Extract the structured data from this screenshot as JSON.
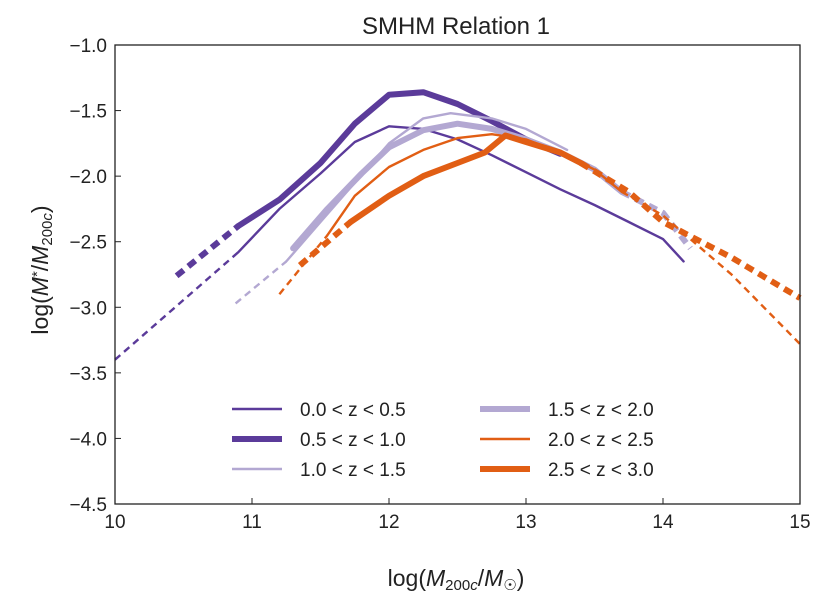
{
  "chart_data": {
    "type": "line",
    "title": "SMHM Relation 1",
    "xlabel": "log(M200c/M☉)",
    "ylabel": "log(M*/M200c)",
    "xlim": [
      10,
      15
    ],
    "ylim": [
      -4.5,
      -1.0
    ],
    "xticks": [
      "10",
      "11",
      "12",
      "13",
      "14",
      "15"
    ],
    "yticks": [
      "−1.0",
      "−1.5",
      "−2.0",
      "−2.5",
      "−3.0",
      "−3.5",
      "−4.0",
      "−4.5"
    ],
    "legend_position": "lower-center",
    "series": [
      {
        "name": "0.0 < z < 0.5",
        "color": "#5b3b9a",
        "weight": "thin",
        "points": [
          [
            10.9,
            -2.58
          ],
          [
            11.2,
            -2.25
          ],
          [
            11.5,
            -1.98
          ],
          [
            11.75,
            -1.74
          ],
          [
            12.0,
            -1.62
          ],
          [
            12.25,
            -1.64
          ],
          [
            12.5,
            -1.72
          ],
          [
            12.75,
            -1.84
          ],
          [
            13.0,
            -1.97
          ],
          [
            13.25,
            -2.1
          ],
          [
            13.5,
            -2.22
          ],
          [
            13.75,
            -2.35
          ],
          [
            14.0,
            -2.48
          ],
          [
            14.15,
            -2.65
          ]
        ],
        "extrapolated": [
          [
            10.0,
            -3.4
          ],
          [
            10.9,
            -2.58
          ]
        ]
      },
      {
        "name": "0.5 < z < 1.0",
        "color": "#5b3b9a",
        "weight": "thick",
        "points": [
          [
            10.9,
            -2.38
          ],
          [
            11.2,
            -2.18
          ],
          [
            11.5,
            -1.9
          ],
          [
            11.75,
            -1.6
          ],
          [
            12.0,
            -1.38
          ],
          [
            12.25,
            -1.36
          ],
          [
            12.5,
            -1.45
          ],
          [
            12.75,
            -1.58
          ],
          [
            13.0,
            -1.72
          ],
          [
            13.25,
            -1.83
          ]
        ],
        "extrapolated": [
          [
            10.45,
            -2.76
          ],
          [
            10.9,
            -2.38
          ]
        ]
      },
      {
        "name": "1.0 < z < 1.5",
        "color": "#b3a8d2",
        "weight": "thin",
        "points": [
          [
            11.25,
            -2.65
          ],
          [
            11.5,
            -2.35
          ],
          [
            11.75,
            -2.05
          ],
          [
            12.0,
            -1.75
          ],
          [
            12.25,
            -1.56
          ],
          [
            12.45,
            -1.52
          ],
          [
            12.75,
            -1.56
          ],
          [
            13.0,
            -1.64
          ],
          [
            13.3,
            -1.8
          ]
        ],
        "extrapolated": [
          [
            10.88,
            -2.97
          ],
          [
            11.25,
            -2.65
          ]
        ]
      },
      {
        "name": "1.5 < z < 2.0",
        "color": "#b3a8d2",
        "weight": "thick",
        "points": [
          [
            11.3,
            -2.55
          ],
          [
            11.55,
            -2.25
          ],
          [
            11.8,
            -1.98
          ],
          [
            12.0,
            -1.78
          ],
          [
            12.25,
            -1.65
          ],
          [
            12.5,
            -1.6
          ],
          [
            12.75,
            -1.64
          ],
          [
            13.0,
            -1.72
          ],
          [
            13.25,
            -1.82
          ],
          [
            13.5,
            -1.95
          ],
          [
            13.7,
            -2.12
          ]
        ],
        "extrapolated": [
          [
            13.7,
            -2.12
          ],
          [
            14.0,
            -2.28
          ],
          [
            14.2,
            -2.55
          ]
        ]
      },
      {
        "name": "2.0 < z < 2.5",
        "color": "#e15e14",
        "weight": "thin",
        "points": [
          [
            11.55,
            -2.45
          ],
          [
            11.75,
            -2.15
          ],
          [
            12.0,
            -1.93
          ],
          [
            12.25,
            -1.8
          ],
          [
            12.5,
            -1.71
          ],
          [
            12.75,
            -1.68
          ],
          [
            13.0,
            -1.72
          ],
          [
            13.25,
            -1.82
          ],
          [
            13.5,
            -1.95
          ],
          [
            13.7,
            -2.12
          ]
        ],
        "extrapolated": [
          [
            11.2,
            -2.9
          ],
          [
            11.55,
            -2.45
          ],
          [
            13.7,
            -2.12
          ],
          [
            14.0,
            -2.3
          ],
          [
            14.5,
            -2.75
          ],
          [
            15.0,
            -3.28
          ]
        ]
      },
      {
        "name": "2.5 < z < 3.0",
        "color": "#e15e14",
        "weight": "thick",
        "points": [
          [
            11.72,
            -2.35
          ],
          [
            12.0,
            -2.15
          ],
          [
            12.25,
            -2.0
          ],
          [
            12.5,
            -1.9
          ],
          [
            12.7,
            -1.82
          ],
          [
            12.85,
            -1.69
          ],
          [
            13.0,
            -1.74
          ],
          [
            13.25,
            -1.82
          ],
          [
            13.4,
            -1.9
          ]
        ],
        "extrapolated": [
          [
            11.35,
            -2.68
          ],
          [
            11.72,
            -2.35
          ],
          [
            13.4,
            -1.9
          ],
          [
            13.75,
            -2.12
          ],
          [
            14.0,
            -2.35
          ],
          [
            14.5,
            -2.62
          ],
          [
            15.0,
            -2.93
          ]
        ]
      }
    ]
  }
}
